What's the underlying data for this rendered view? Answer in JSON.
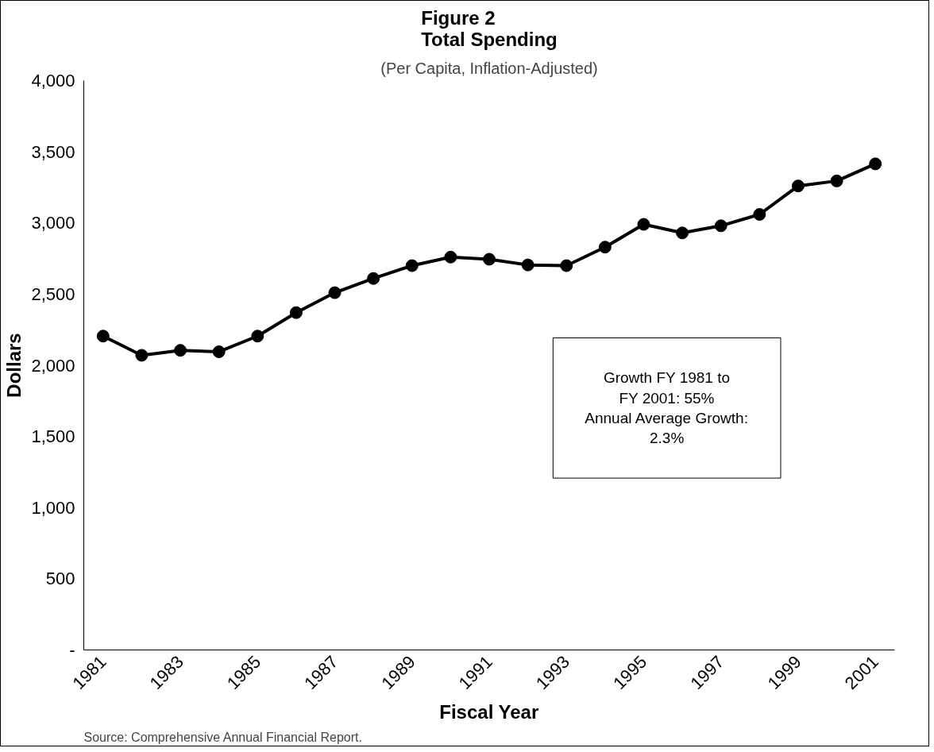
{
  "chart_data": {
    "type": "line",
    "title": "Figure 2\nTotal Spending",
    "subtitle": "(Per Capita, Inflation-Adjusted)",
    "xlabel": "Fiscal Year",
    "ylabel": "Dollars",
    "x": [
      1981,
      1982,
      1983,
      1984,
      1985,
      1986,
      1987,
      1988,
      1989,
      1990,
      1991,
      1992,
      1993,
      1994,
      1995,
      1996,
      1997,
      1998,
      1999,
      2000,
      2001
    ],
    "series": [
      {
        "color": "#000000",
        "values": [
          2205,
          2070,
          2105,
          2095,
          2205,
          2370,
          2510,
          2610,
          2700,
          2760,
          2745,
          2705,
          2700,
          2830,
          2990,
          2930,
          2980,
          3060,
          3260,
          3295,
          3415
        ]
      }
    ],
    "xlim": [
      1980.5,
      2001.5
    ],
    "xticks": [
      1981,
      1983,
      1985,
      1987,
      1989,
      1991,
      1993,
      1995,
      1997,
      1999,
      2001
    ],
    "ylim": [
      0,
      4000
    ],
    "yticks": [
      {
        "value": 0,
        "label": "-"
      },
      {
        "value": 500,
        "label": "500"
      },
      {
        "value": 1000,
        "label": "1,000"
      },
      {
        "value": 1500,
        "label": "1,500"
      },
      {
        "value": 2000,
        "label": "2,000"
      },
      {
        "value": 2500,
        "label": "2,500"
      },
      {
        "value": 3000,
        "label": "3,000"
      },
      {
        "value": 3500,
        "label": "3,500"
      },
      {
        "value": 4000,
        "label": "4,000"
      }
    ],
    "annotations": [
      "Growth FY 1981 to\nFY 2001: 55%\nAnnual Average Growth:\n2.3%",
      "Source: Comprehensive Annual Financial Report."
    ],
    "grid": false,
    "marker": "circle",
    "line_style": "solid"
  }
}
